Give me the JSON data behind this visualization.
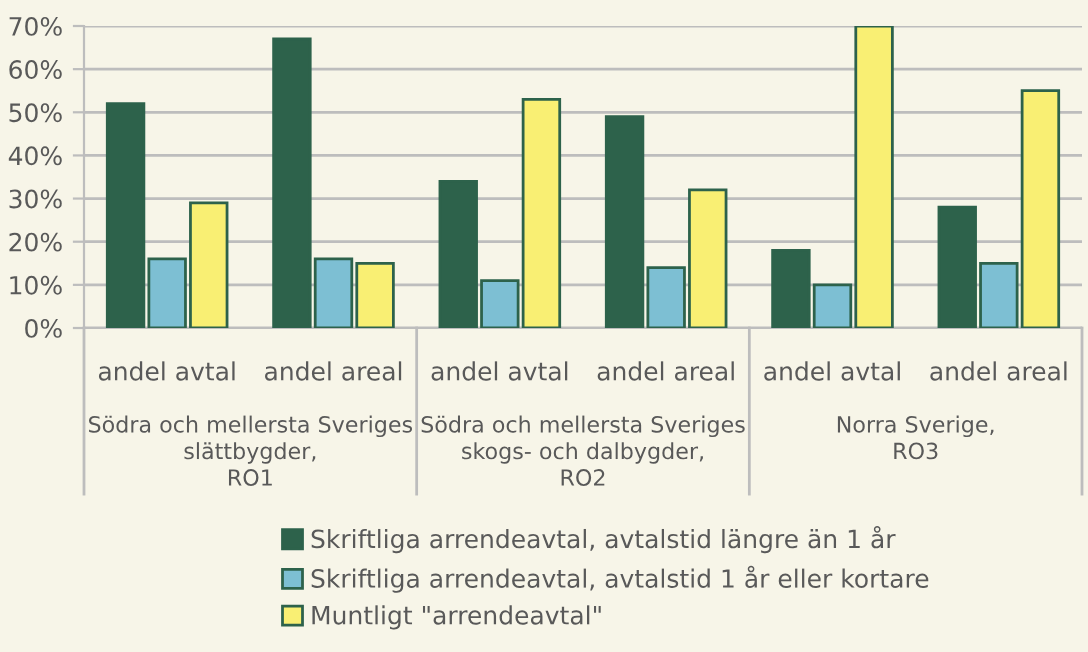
{
  "chart_data": {
    "type": "bar",
    "categories": [
      "andel avtal",
      "andel areal",
      "andel avtal",
      "andel areal",
      "andel avtal",
      "andel areal"
    ],
    "annotations": [
      "Södra och mellersta Sveriges\nslättbygder,\nRO1",
      "Södra och mellersta Sveriges\nskogs- och dalbygder,\nRO2",
      "Norra Sverige,\nRO3"
    ],
    "series": [
      {
        "name": "Skriftliga arrendeavtal, avtalstid längre än 1 år",
        "color": "#2d624b",
        "values": [
          52,
          67,
          34,
          49,
          18,
          28
        ]
      },
      {
        "name": "Skriftliga arrendeavtal, avtalstid 1 år eller kortare",
        "color": "#7dbfd3",
        "values": [
          16,
          16,
          11,
          14,
          10,
          15
        ]
      },
      {
        "name": "Muntligt \"arrendeavtal\"",
        "color": "#f9ef73",
        "values": [
          29,
          15,
          53,
          32,
          70,
          55
        ]
      }
    ],
    "ylim": [
      0,
      70
    ],
    "yticks": [
      {
        "value": 0,
        "label": "0%"
      },
      {
        "value": 10,
        "label": "10%"
      },
      {
        "value": 20,
        "label": "20%"
      },
      {
        "value": 30,
        "label": "30%"
      },
      {
        "value": 40,
        "label": "40%"
      },
      {
        "value": 50,
        "label": "50%"
      },
      {
        "value": 60,
        "label": "60%"
      },
      {
        "value": 70,
        "label": "70%"
      }
    ],
    "grid": "y",
    "legend": "bottom"
  }
}
